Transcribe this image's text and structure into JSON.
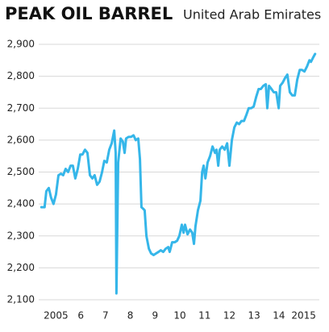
{
  "chart_data": {
    "type": "line",
    "title": "PEAK OIL BARREL",
    "subtitle": "United Arab Emirates",
    "x": [
      2004.91,
      2005.04,
      2005.11,
      2005.21,
      2005.3,
      2005.4,
      2005.5,
      2005.6,
      2005.7,
      2005.79,
      2005.89,
      2005.99,
      2006.09,
      2006.18,
      2006.28,
      2006.38,
      2006.48,
      2006.57,
      2006.67,
      2006.77,
      2006.87,
      2006.97,
      2007.06,
      2007.16,
      2007.26,
      2007.36,
      2007.45,
      2007.55,
      2007.65,
      2007.75,
      2007.85,
      2007.91,
      2007.94,
      2008.01,
      2008.11,
      2008.2,
      2008.27,
      2008.33,
      2008.43,
      2008.53,
      2008.63,
      2008.72,
      2008.82,
      2008.89,
      2008.95,
      2009.02,
      2009.08,
      2009.15,
      2009.25,
      2009.34,
      2009.44,
      2009.54,
      2009.64,
      2009.73,
      2009.83,
      2009.93,
      2010.03,
      2010.09,
      2010.19,
      2010.29,
      2010.39,
      2010.48,
      2010.58,
      2010.65,
      2010.71,
      2010.81,
      2010.91,
      2011.0,
      2011.07,
      2011.13,
      2011.23,
      2011.33,
      2011.4,
      2011.46,
      2011.53,
      2011.62,
      2011.72,
      2011.82,
      2011.92,
      2011.98,
      2012.05,
      2012.11,
      2012.21,
      2012.31,
      2012.41,
      2012.5,
      2012.6,
      2012.7,
      2012.8,
      2012.89,
      2012.99,
      2013.09,
      2013.19,
      2013.28,
      2013.38,
      2013.48,
      2013.58,
      2013.68,
      2013.77,
      2013.87,
      2013.97,
      2014.03,
      2014.1,
      2014.2,
      2014.29,
      2014.39,
      2014.49,
      2014.55,
      2014.65,
      2014.75,
      2014.84,
      2014.94,
      2015.04,
      2015.14,
      2015.24,
      2015.34,
      2015.43,
      2015.53,
      2015.63,
      2015.73,
      2015.79,
      2015.89,
      2015.96
    ],
    "values": [
      2390,
      2390,
      2440,
      2450,
      2420,
      2400,
      2430,
      2490,
      2495,
      2490,
      2510,
      2500,
      2520,
      2520,
      2480,
      2510,
      2555,
      2555,
      2570,
      2560,
      2490,
      2480,
      2490,
      2460,
      2470,
      2500,
      2535,
      2530,
      2570,
      2590,
      2630,
      2560,
      2120,
      2530,
      2605,
      2595,
      2560,
      2605,
      2610,
      2610,
      2615,
      2600,
      2605,
      2540,
      2390,
      2385,
      2380,
      2300,
      2260,
      2245,
      2240,
      2245,
      2250,
      2255,
      2250,
      2260,
      2265,
      2250,
      2280,
      2280,
      2285,
      2300,
      2335,
      2310,
      2335,
      2305,
      2320,
      2310,
      2275,
      2330,
      2380,
      2410,
      2500,
      2520,
      2480,
      2530,
      2550,
      2580,
      2560,
      2570,
      2520,
      2570,
      2580,
      2570,
      2590,
      2520,
      2600,
      2640,
      2655,
      2650,
      2660,
      2660,
      2680,
      2700,
      2700,
      2705,
      2735,
      2760,
      2760,
      2770,
      2775,
      2700,
      2770,
      2760,
      2750,
      2750,
      2700,
      2770,
      2780,
      2795,
      2805,
      2750,
      2740,
      2740,
      2790,
      2820,
      2820,
      2815,
      2830,
      2850,
      2845,
      2860,
      2870
    ],
    "color": "#35b6e9",
    "xlim": [
      2004.9,
      2016.0
    ],
    "xticks": [
      {
        "value": 2005.5,
        "label": "2005"
      },
      {
        "value": 2006.5,
        "label": "6"
      },
      {
        "value": 2007.5,
        "label": "7"
      },
      {
        "value": 2008.5,
        "label": "8"
      },
      {
        "value": 2009.5,
        "label": "9"
      },
      {
        "value": 2010.5,
        "label": "10"
      },
      {
        "value": 2011.5,
        "label": "11"
      },
      {
        "value": 2012.5,
        "label": "12"
      },
      {
        "value": 2013.5,
        "label": "13"
      },
      {
        "value": 2014.5,
        "label": "14"
      },
      {
        "value": 2015.5,
        "label": "2015"
      }
    ],
    "ylim": [
      2100,
      2900
    ],
    "yticks": [
      {
        "value": 2100,
        "label": "2,100"
      },
      {
        "value": 2200,
        "label": "2,200"
      },
      {
        "value": 2300,
        "label": "2,300"
      },
      {
        "value": 2400,
        "label": "2,400"
      },
      {
        "value": 2500,
        "label": "2,500"
      },
      {
        "value": 2600,
        "label": "2,600"
      },
      {
        "value": 2700,
        "label": "2,700"
      },
      {
        "value": 2800,
        "label": "2,800"
      },
      {
        "value": 2900,
        "label": "2,900"
      }
    ],
    "grid": true
  }
}
